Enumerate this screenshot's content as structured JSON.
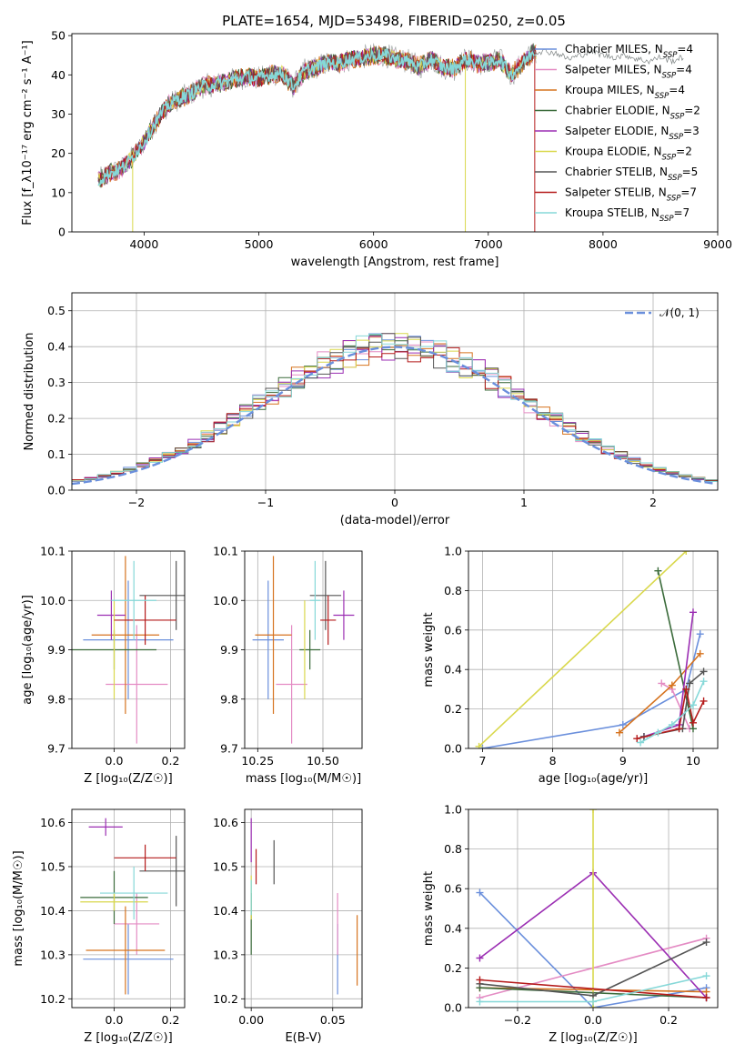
{
  "figure": {
    "title": "PLATE=1654, MJD=53498, FIBERID=0250, z=0.05"
  },
  "colors": {
    "series": [
      "#6a8fdc",
      "#e48cc4",
      "#d6731f",
      "#3b6b3b",
      "#9b2eb3",
      "#d9d84c",
      "#555555",
      "#b51b1b",
      "#86d8d8"
    ]
  },
  "chart_data": [
    {
      "id": "spectrum",
      "type": "line",
      "title": "PLATE=1654, MJD=53498, FIBERID=0250, z=0.05",
      "xlabel": "wavelength [Angstrom, rest frame]",
      "ylabel": "Flux [f_λ10⁻¹⁷ erg cm⁻² s⁻¹ A⁻¹]",
      "xlim": [
        3370,
        9000
      ],
      "ylim": [
        0,
        50.5
      ],
      "xticks": [
        4000,
        5000,
        6000,
        7000,
        8000,
        9000
      ],
      "yticks": [
        0,
        10,
        20,
        30,
        40,
        50
      ],
      "legend_position": "top-right",
      "legend": [
        "Chabrier MILES, N_SSP=4",
        "Salpeter MILES, N_SSP=4",
        "Kroupa MILES, N_SSP=4",
        "Chabrier ELODIE, N_SSP=2",
        "Salpeter ELODIE, N_SSP=3",
        "Kroupa ELODIE, N_SSP=2",
        "Chabrier STELIB, N_SSP=5",
        "Salpeter STELIB, N_SSP=7",
        "Kroupa STELIB, N_SSP=7"
      ],
      "data_envelope": {
        "x": [
          3600,
          3700,
          3800,
          3900,
          4000,
          4100,
          4200,
          4300,
          4400,
          4500,
          4600,
          4700,
          4800,
          4900,
          5000,
          5100,
          5200,
          5300,
          5400,
          5500,
          5600,
          5700,
          5800,
          5900,
          6000,
          6100,
          6200,
          6300,
          6400,
          6500,
          6600,
          6700,
          6800,
          6900,
          7000,
          7100,
          7200,
          7300,
          7400
        ],
        "y": [
          13,
          15,
          16,
          19,
          23,
          28,
          32,
          34,
          35,
          37,
          37.5,
          38,
          39,
          39.5,
          39,
          40,
          40.5,
          37,
          41,
          42,
          43,
          43,
          44,
          44.5,
          45,
          45,
          44,
          43.5,
          42,
          44,
          42,
          41.5,
          44,
          43,
          43,
          44,
          40,
          43,
          46
        ]
      },
      "extended_model": {
        "x": [
          7400,
          7500,
          7600,
          7700,
          7800,
          7900,
          8000,
          8100,
          8200,
          8300,
          8400,
          8500,
          8600,
          8700
        ],
        "y": [
          46,
          46,
          45.5,
          44,
          45,
          46,
          45,
          44.5,
          45,
          44,
          43.5,
          44.5,
          43.5,
          44.5
        ]
      }
    },
    {
      "id": "residual_hist",
      "type": "line",
      "xlabel": "(data-model)/error",
      "ylabel": "Normed distribution",
      "xlim": [
        -2.5,
        2.5
      ],
      "ylim": [
        0,
        0.55
      ],
      "xticks": [
        -2,
        -1,
        0,
        1,
        2
      ],
      "yticks": [
        0.0,
        0.1,
        0.2,
        0.3,
        0.4,
        0.5
      ],
      "grid": true,
      "legend_position": "top-right",
      "legend": [
        "𝒩(0, 1)"
      ],
      "reference_curve": "standard normal pdf, mean 0, sigma 1"
    },
    {
      "id": "age_vs_Z",
      "type": "scatter",
      "xlabel": "Z [log₁₀(Z/Z☉)]",
      "ylabel": "age [log₁₀(age/yr)]",
      "xlim": [
        -0.15,
        0.25
      ],
      "ylim": [
        9.7,
        10.1
      ],
      "xticks": [
        0.0,
        0.2
      ],
      "yticks": [
        9.7,
        9.8,
        9.9,
        10.0,
        10.1
      ],
      "grid": true,
      "points": [
        {
          "x": 0.05,
          "y": 9.92,
          "xerr": 0.16,
          "yerr": 0.12
        },
        {
          "x": 0.08,
          "y": 9.83,
          "xerr": 0.11,
          "yerr": 0.12
        },
        {
          "x": 0.04,
          "y": 9.93,
          "xerr": 0.12,
          "yerr": 0.16
        },
        {
          "x": 0.0,
          "y": 9.9,
          "xerr": 0.15,
          "yerr": 0.04
        },
        {
          "x": -0.01,
          "y": 9.97,
          "xerr": 0.05,
          "yerr": 0.05
        },
        {
          "x": 0.0,
          "y": 9.9,
          "xerr": 0.0,
          "yerr": 0.1
        },
        {
          "x": 0.22,
          "y": 10.01,
          "xerr": 0.13,
          "yerr": 0.07
        },
        {
          "x": 0.11,
          "y": 9.96,
          "xerr": 0.11,
          "yerr": 0.05
        },
        {
          "x": 0.07,
          "y": 10.0,
          "xerr": 0.08,
          "yerr": 0.08
        }
      ]
    },
    {
      "id": "age_vs_mass",
      "type": "scatter",
      "xlabel": "mass [log₁₀(M/M☉)]",
      "ylabel": "",
      "xlim": [
        10.2,
        10.65
      ],
      "ylim": [
        9.7,
        10.1
      ],
      "xticks": [
        10.25,
        10.5
      ],
      "yticks": [
        9.7,
        9.8,
        9.9,
        10.0,
        10.1
      ],
      "grid": true,
      "points": [
        {
          "x": 10.29,
          "y": 9.92,
          "xerr": 0.06,
          "yerr": 0.12
        },
        {
          "x": 10.38,
          "y": 9.83,
          "xerr": 0.06,
          "yerr": 0.12
        },
        {
          "x": 10.31,
          "y": 9.93,
          "xerr": 0.07,
          "yerr": 0.16
        },
        {
          "x": 10.45,
          "y": 9.9,
          "xerr": 0.04,
          "yerr": 0.04
        },
        {
          "x": 10.58,
          "y": 9.97,
          "xerr": 0.04,
          "yerr": 0.05
        },
        {
          "x": 10.43,
          "y": 9.9,
          "xerr": 0.0,
          "yerr": 0.1
        },
        {
          "x": 10.51,
          "y": 10.01,
          "xerr": 0.06,
          "yerr": 0.07
        },
        {
          "x": 10.52,
          "y": 9.96,
          "xerr": 0.03,
          "yerr": 0.05
        },
        {
          "x": 10.47,
          "y": 10.0,
          "xerr": 0.02,
          "yerr": 0.08
        }
      ]
    },
    {
      "id": "weight_vs_age",
      "type": "line",
      "xlabel": "age [log₁₀(age/yr)]",
      "ylabel": "mass weight",
      "xlim": [
        6.8,
        10.35
      ],
      "ylim": [
        0.0,
        1.0
      ],
      "xticks": [
        7,
        8,
        9,
        10
      ],
      "yticks": [
        0.0,
        0.2,
        0.4,
        0.6,
        0.8,
        1.0
      ],
      "grid": true,
      "series": [
        {
          "x": [
            7.0,
            9.0,
            9.9,
            10.1
          ],
          "y": [
            0.0,
            0.12,
            0.3,
            0.58
          ]
        },
        {
          "x": [
            9.55,
            9.7,
            9.95
          ],
          "y": [
            0.33,
            0.3,
            0.1
          ]
        },
        {
          "x": [
            8.95,
            9.7,
            10.1
          ],
          "y": [
            0.08,
            0.32,
            0.48
          ]
        },
        {
          "x": [
            9.5,
            10.0
          ],
          "y": [
            0.9,
            0.1
          ]
        },
        {
          "x": [
            9.3,
            9.8,
            10.0
          ],
          "y": [
            0.06,
            0.12,
            0.69
          ]
        },
        {
          "x": [
            6.95,
            9.9
          ],
          "y": [
            0.01,
            1.0
          ]
        },
        {
          "x": [
            9.3,
            9.85,
            9.95,
            10.15
          ],
          "y": [
            0.06,
            0.1,
            0.33,
            0.39
          ]
        },
        {
          "x": [
            9.2,
            9.8,
            9.9,
            10.0,
            10.15
          ],
          "y": [
            0.05,
            0.1,
            0.3,
            0.13,
            0.24
          ]
        },
        {
          "x": [
            9.25,
            9.5,
            9.7,
            10.0,
            10.15
          ],
          "y": [
            0.03,
            0.08,
            0.12,
            0.22,
            0.34
          ]
        }
      ]
    },
    {
      "id": "mass_vs_Z",
      "type": "scatter",
      "xlabel": "Z [log₁₀(Z/Z☉)]",
      "ylabel": "mass [log₁₀(M/M☉)]",
      "xlim": [
        -0.15,
        0.25
      ],
      "ylim": [
        10.18,
        10.63
      ],
      "xticks": [
        0.0,
        0.2
      ],
      "yticks": [
        10.2,
        10.3,
        10.4,
        10.5,
        10.6
      ],
      "grid": true,
      "points": [
        {
          "x": 0.05,
          "y": 10.29,
          "xerr": 0.16,
          "yerr": 0.08
        },
        {
          "x": 0.08,
          "y": 10.37,
          "xerr": 0.08,
          "yerr": 0.07
        },
        {
          "x": 0.04,
          "y": 10.31,
          "xerr": 0.14,
          "yerr": 0.1
        },
        {
          "x": 0.0,
          "y": 10.43,
          "xerr": 0.12,
          "yerr": 0.06
        },
        {
          "x": -0.03,
          "y": 10.59,
          "xerr": 0.06,
          "yerr": 0.02
        },
        {
          "x": 0.0,
          "y": 10.42,
          "xerr": 0.12,
          "yerr": 0.02
        },
        {
          "x": 0.22,
          "y": 10.49,
          "xerr": 0.13,
          "yerr": 0.08
        },
        {
          "x": 0.11,
          "y": 10.52,
          "xerr": 0.11,
          "yerr": 0.03
        },
        {
          "x": 0.07,
          "y": 10.44,
          "xerr": 0.12,
          "yerr": 0.06
        }
      ]
    },
    {
      "id": "mass_vs_EBV",
      "type": "scatter",
      "xlabel": "E(B-V)",
      "ylabel": "",
      "xlim": [
        -0.004,
        0.068
      ],
      "ylim": [
        10.18,
        10.63
      ],
      "xticks": [
        0.0,
        0.05
      ],
      "yticks": [
        10.2,
        10.3,
        10.4,
        10.5,
        10.6
      ],
      "grid": true,
      "points": [
        {
          "x": 0.053,
          "y": 10.29,
          "xerr": 0.0,
          "yerr": 0.08
        },
        {
          "x": 0.053,
          "y": 10.37,
          "xerr": 0.0,
          "yerr": 0.07
        },
        {
          "x": 0.065,
          "y": 10.31,
          "xerr": 0.0,
          "yerr": 0.08
        },
        {
          "x": 0.0,
          "y": 10.37,
          "xerr": 0.0,
          "yerr": 0.07
        },
        {
          "x": 0.0,
          "y": 10.56,
          "xerr": 0.0,
          "yerr": 0.05
        },
        {
          "x": 0.0,
          "y": 10.43,
          "xerr": 0.0,
          "yerr": 0.05
        },
        {
          "x": 0.014,
          "y": 10.51,
          "xerr": 0.0,
          "yerr": 0.05
        },
        {
          "x": 0.003,
          "y": 10.5,
          "xerr": 0.0,
          "yerr": 0.04
        },
        {
          "x": 0.0,
          "y": 10.43,
          "xerr": 0.0,
          "yerr": 0.04
        }
      ]
    },
    {
      "id": "weight_vs_Z",
      "type": "line",
      "xlabel": "Z [log₁₀(Z/Z☉)]",
      "ylabel": "mass weight",
      "xlim": [
        -0.33,
        0.33
      ],
      "ylim": [
        0.0,
        1.0
      ],
      "xticks": [
        -0.2,
        0.0,
        0.2
      ],
      "yticks": [
        0.0,
        0.2,
        0.4,
        0.6,
        0.8,
        1.0
      ],
      "grid": true,
      "series": [
        {
          "x": [
            -0.3,
            0.0,
            0.3
          ],
          "y": [
            0.58,
            0.0,
            0.1
          ]
        },
        {
          "x": [
            -0.3,
            0.3
          ],
          "y": [
            0.05,
            0.35
          ]
        },
        {
          "x": [
            -0.3,
            0.3
          ],
          "y": [
            0.1,
            0.08
          ]
        },
        {
          "x": [
            -0.3,
            0.3
          ],
          "y": [
            0.1,
            0.05
          ]
        },
        {
          "x": [
            -0.3,
            0.0,
            0.3
          ],
          "y": [
            0.25,
            0.68,
            0.05
          ]
        },
        {
          "x": [
            0.0,
            0.0
          ],
          "y": [
            0.0,
            1.0
          ]
        },
        {
          "x": [
            -0.3,
            0.0,
            0.3
          ],
          "y": [
            0.12,
            0.06,
            0.33
          ]
        },
        {
          "x": [
            -0.3,
            0.3
          ],
          "y": [
            0.14,
            0.05
          ]
        },
        {
          "x": [
            -0.3,
            0.0,
            0.3
          ],
          "y": [
            0.03,
            0.03,
            0.16
          ]
        }
      ]
    }
  ]
}
